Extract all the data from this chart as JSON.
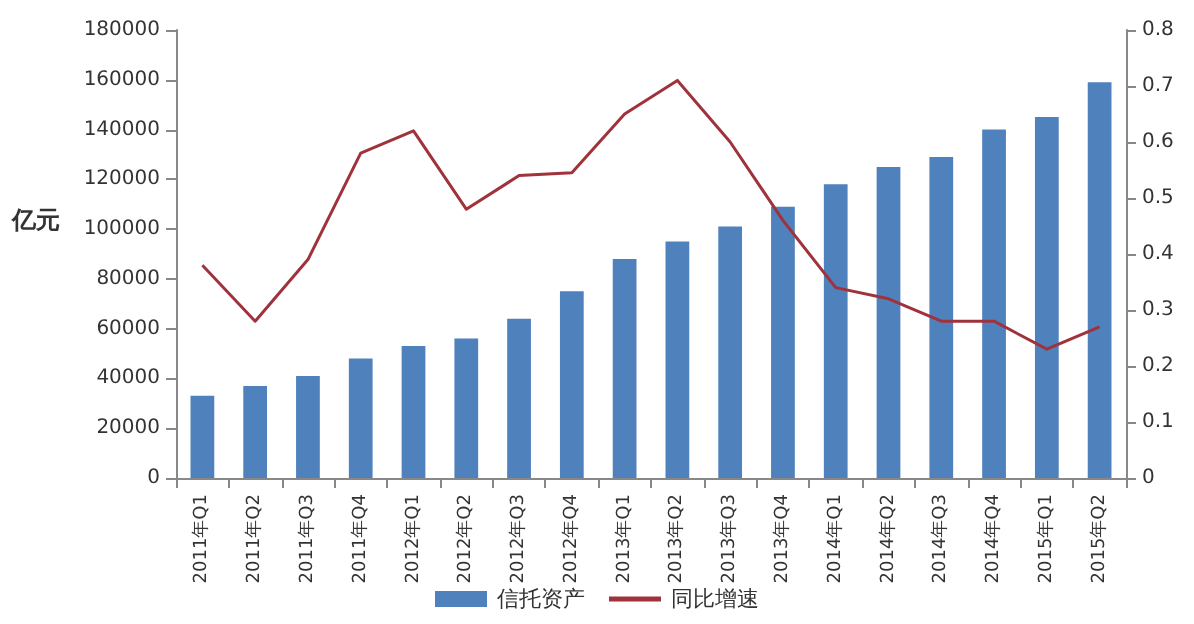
{
  "chart_data": {
    "type": "bar",
    "ylabel": "亿元",
    "categories": [
      "2011年Q1",
      "2011年Q2",
      "2011年Q3",
      "2011年Q4",
      "2012年Q1",
      "2012年Q2",
      "2012年Q3",
      "2012年Q4",
      "2013年Q1",
      "2013年Q2",
      "2013年Q3",
      "2013年Q4",
      "2014年Q1",
      "2014年Q2",
      "2014年Q3",
      "2014年Q4",
      "2015年Q1",
      "2015年Q2"
    ],
    "series": [
      {
        "name": "信托资产",
        "color": "#4f81bd",
        "values": [
          33000,
          37000,
          41000,
          48000,
          53000,
          56000,
          64000,
          75000,
          88000,
          95000,
          101000,
          109000,
          118000,
          125000,
          129000,
          140000,
          145000,
          159000
        ]
      },
      {
        "name": "同比增速",
        "type": "line",
        "axis": "y2",
        "color": "#a0323c",
        "values": [
          0.38,
          0.28,
          0.39,
          0.58,
          0.62,
          0.48,
          0.54,
          0.545,
          0.65,
          0.71,
          0.6,
          0.46,
          0.34,
          0.32,
          0.28,
          0.28,
          0.23,
          0.27
        ]
      }
    ],
    "ylim": [
      0,
      180000
    ],
    "yticks": [
      0,
      20000,
      40000,
      60000,
      80000,
      100000,
      120000,
      140000,
      160000,
      180000
    ],
    "y2lim": [
      0,
      0.8
    ],
    "y2ticks": [
      0,
      0.1,
      0.2,
      0.3,
      0.4,
      0.5,
      0.6,
      0.7,
      0.8
    ],
    "legend": "bottom",
    "grid": false,
    "marker": "none"
  }
}
